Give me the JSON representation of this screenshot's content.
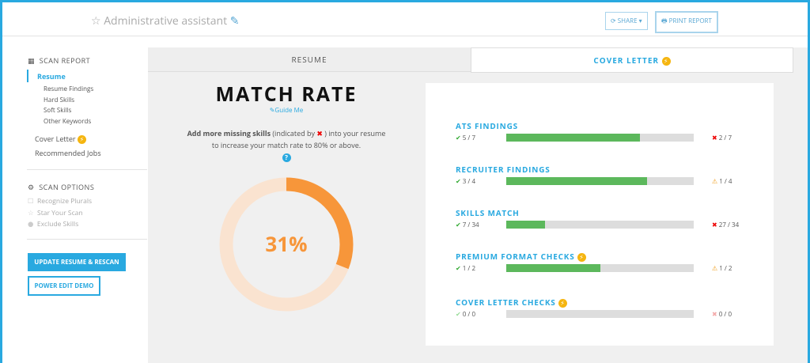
{
  "header": {
    "title": "Administrative assistant",
    "share": "SHARE",
    "print": "PRINT REPORT"
  },
  "sidebar": {
    "scan_report": "SCAN REPORT",
    "active": "Resume",
    "sub_items": [
      "Resume Findings",
      "Hard Skills",
      "Soft Skills",
      "Other Keywords"
    ],
    "cover_letter": "Cover Letter",
    "recommended": "Recommended Jobs",
    "scan_options": "SCAN OPTIONS",
    "options": [
      "Recognize Plurals",
      "Star Your Scan",
      "Exclude Skills"
    ],
    "rescan": "UPDATE RESUME & RESCAN",
    "power_edit": "POWER EDIT DEMO"
  },
  "tabs": [
    "RESUME",
    "COVER LETTER"
  ],
  "match": {
    "title": "MATCH RATE",
    "guide": "Guide Me",
    "text_bold": "Add more missing skills",
    "text_before": " (indicated by ",
    "text_after": " ) into your resume to increase your match rate to 80% or above.",
    "rate": 31,
    "rate_label": "31%"
  },
  "checks": [
    {
      "name": "ATS FINDINGS",
      "passed": 5,
      "total": 7,
      "passed_label": "5 / 7",
      "failed_label": "2 / 7",
      "status": "error",
      "premium": false
    },
    {
      "name": "RECRUITER FINDINGS",
      "passed": 3,
      "total": 4,
      "passed_label": "3 / 4",
      "failed_label": "1 / 4",
      "status": "warning",
      "premium": false
    },
    {
      "name": "SKILLS MATCH",
      "passed": 7,
      "total": 34,
      "passed_label": "7 / 34",
      "failed_label": "27 / 34",
      "status": "error",
      "premium": false
    },
    {
      "name": "PREMIUM FORMAT CHECKS",
      "passed": 1,
      "total": 2,
      "passed_label": "1 / 2",
      "failed_label": "1 / 2",
      "status": "warning",
      "premium": true
    },
    {
      "name": "COVER LETTER CHECKS",
      "passed": 0,
      "total": 0,
      "passed_label": "0 / 0",
      "failed_label": "0 / 0",
      "status": "none",
      "premium": true
    }
  ]
}
